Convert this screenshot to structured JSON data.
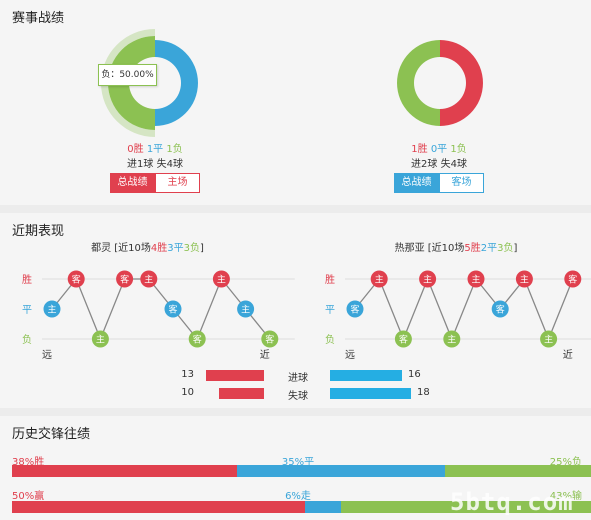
{
  "colors": {
    "win": "#e0404e",
    "draw": "#3aa5d9",
    "loss": "#8cc152",
    "line": "#888888"
  },
  "record": {
    "title": "赛事战绩",
    "left": {
      "wins": "0胜",
      "draws": "1平",
      "losses": "1负",
      "goals": "进1球  失4球",
      "tooltip": "负：50.00%",
      "pie": {
        "win": 0,
        "draw": 1,
        "loss": 1
      },
      "btn_all": "总战绩",
      "btn_side": "主场"
    },
    "right": {
      "wins": "1胜",
      "draws": "0平",
      "losses": "1负",
      "goals": "进2球  失4球",
      "pie": {
        "win": 1,
        "draw": 0,
        "loss": 1
      },
      "btn_all": "总战绩",
      "btn_side": "客场"
    }
  },
  "recent": {
    "title": "近期表现",
    "left": {
      "heading_name": "都灵",
      "heading_pre": " [近10场",
      "w": "4胜",
      "d": "3平",
      "l": "3负",
      "heading_end": "]",
      "y_labels": [
        "胜",
        "平",
        "负"
      ],
      "far": "远",
      "near": "近",
      "matches": [
        {
          "venue": "主",
          "result": "draw"
        },
        {
          "venue": "客",
          "result": "win"
        },
        {
          "venue": "主",
          "result": "loss"
        },
        {
          "venue": "客",
          "result": "win"
        },
        {
          "venue": "主",
          "result": "win"
        },
        {
          "venue": "客",
          "result": "draw"
        },
        {
          "venue": "客",
          "result": "loss"
        },
        {
          "venue": "主",
          "result": "win"
        },
        {
          "venue": "主",
          "result": "draw"
        },
        {
          "venue": "客",
          "result": "loss"
        }
      ]
    },
    "right": {
      "heading_name": "热那亚",
      "heading_pre": " [近10场",
      "w": "5胜",
      "d": "2平",
      "l": "3负",
      "heading_end": "]",
      "y_labels": [
        "胜",
        "平",
        "负"
      ],
      "far": "远",
      "near": "近",
      "matches": [
        {
          "venue": "客",
          "result": "draw"
        },
        {
          "venue": "主",
          "result": "win"
        },
        {
          "venue": "客",
          "result": "loss"
        },
        {
          "venue": "主",
          "result": "win"
        },
        {
          "venue": "主",
          "result": "loss"
        },
        {
          "venue": "主",
          "result": "win"
        },
        {
          "venue": "客",
          "result": "draw"
        },
        {
          "venue": "主",
          "result": "win"
        },
        {
          "venue": "主",
          "result": "loss"
        },
        {
          "venue": "客",
          "result": "win"
        }
      ]
    },
    "goals_for": {
      "label": "进球",
      "left": 13,
      "right": 16
    },
    "goals_against": {
      "label": "失球",
      "left": 10,
      "right": 18
    },
    "goal_scale_max": 20
  },
  "history": {
    "title": "历史交锋往绩",
    "row1": {
      "a_label": "38%胜",
      "b_label": "35%平",
      "c_label": "25%负",
      "a": 38,
      "b": 35,
      "c": 25
    },
    "row2": {
      "a_label": "50%赢",
      "b_label": "6%走",
      "c_label": "43%输",
      "a": 50,
      "b": 6,
      "c": 43
    }
  },
  "watermark": "5btq.com"
}
